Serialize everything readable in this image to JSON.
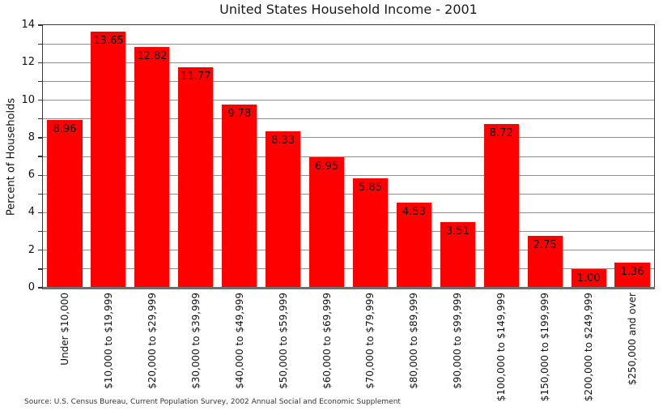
{
  "chart_data": {
    "type": "bar",
    "title": "United States Household Income - 2001",
    "xlabel": "",
    "ylabel": "Percent of Households",
    "categories": [
      "Under $10,000",
      "$10,000 to $19,999",
      "$20,000 to $29,999",
      "$30,000 to $39,999",
      "$40,000 to $49,999",
      "$50,000 to $59,999",
      "$60,000 to $69,999",
      "$70,000 to $79,999",
      "$80,000 to $89,999",
      "$90,000 to $99,999",
      "$100,000 to $149,999",
      "$150,000 to $199,999",
      "$200,000 to $249,999",
      "$250,000 and over"
    ],
    "values": [
      8.96,
      13.65,
      12.82,
      11.77,
      9.78,
      8.33,
      6.95,
      5.85,
      4.53,
      3.51,
      8.72,
      2.75,
      1.0,
      1.36
    ],
    "bar_labels": [
      "8.96",
      "13.65",
      "12.82",
      "11.77",
      "9.78",
      "8.33",
      "6.95",
      "5.85",
      "4.53",
      "3.51",
      "8.72",
      "2.75",
      "1.00",
      "1.36"
    ],
    "ylim": [
      0,
      14
    ],
    "yticks": [
      0,
      2,
      4,
      6,
      8,
      10,
      12,
      14
    ],
    "grid": "horizontal gridlines at every integer from 1 to 13",
    "legend": "none",
    "colors": {
      "bar": "#ff0000",
      "bar_label_text": "#000000",
      "gridline": "#8f8f8f",
      "axis_frame": "#3a3a3a",
      "title_text": "#1a1a1a"
    },
    "source_note": "Source: U.S. Census Bureau, Current Population Survey, 2002 Annual Social and Economic Supplement"
  }
}
